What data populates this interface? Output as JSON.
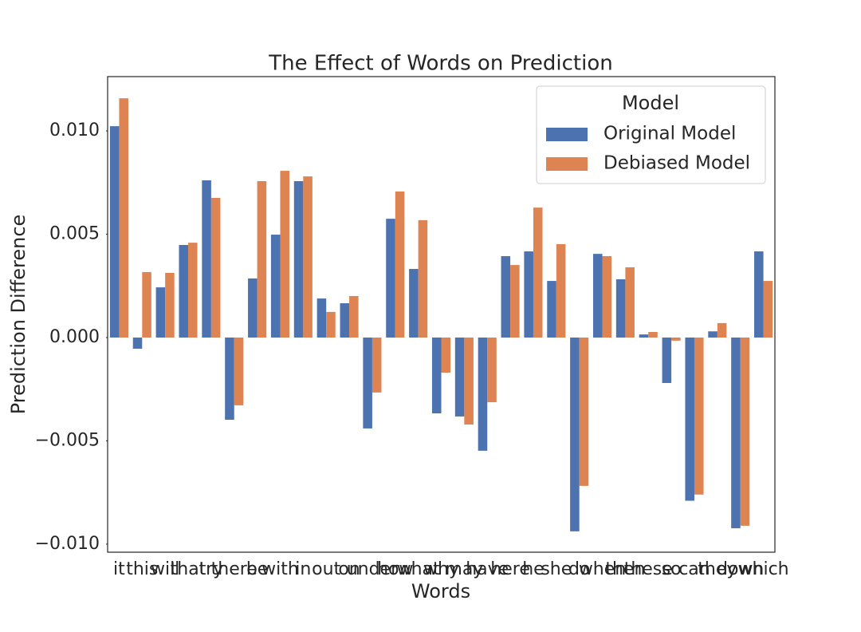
{
  "chart_data": {
    "type": "bar",
    "title": "The Effect of Words on Prediction",
    "xlabel": "Words",
    "ylabel": "Prediction Difference",
    "categories": [
      "it",
      "this",
      "will",
      "that",
      "try",
      "there",
      "be",
      "with",
      "in",
      "out",
      "on",
      "under",
      "how",
      "what",
      "why",
      "may",
      "have",
      "here",
      "he",
      "she",
      "do",
      "when",
      "then",
      "these",
      "so",
      "can",
      "they",
      "down",
      "which"
    ],
    "series": [
      {
        "name": "Original Model",
        "color": "#4c72b0",
        "values": [
          0.01023,
          -0.00054,
          0.00243,
          0.00448,
          0.00761,
          -0.00398,
          0.00286,
          0.00498,
          0.00757,
          0.00189,
          0.00166,
          -0.0044,
          0.00575,
          0.00332,
          -0.00367,
          -0.00382,
          -0.00548,
          0.00394,
          0.00417,
          0.00274,
          -0.00938,
          0.00405,
          0.00282,
          0.00015,
          -0.0022,
          -0.0079,
          0.0003,
          -0.00923,
          0.00417
        ]
      },
      {
        "name": "Debiased Model",
        "color": "#dd8452",
        "values": [
          0.01158,
          0.00317,
          0.00313,
          0.00459,
          0.00676,
          -0.00328,
          0.00757,
          0.00807,
          0.0078,
          0.00124,
          0.00201,
          -0.00266,
          0.00707,
          0.00568,
          -0.0017,
          -0.00421,
          -0.00313,
          0.00351,
          0.00629,
          0.00452,
          -0.00718,
          0.00394,
          0.0034,
          0.00027,
          -0.00015,
          -0.0076,
          0.0007,
          -0.00911,
          0.00274
        ]
      }
    ],
    "legend_title": "Model",
    "legend": "upper right",
    "ylim": [
      -0.01039,
      0.01263
    ],
    "yticks": [
      {
        "value": -0.01,
        "label": "−0.010"
      },
      {
        "value": -0.005,
        "label": "−0.005"
      },
      {
        "value": 0,
        "label": "0.000"
      },
      {
        "value": 0.005,
        "label": "0.005"
      },
      {
        "value": 0.01,
        "label": "0.010"
      }
    ]
  }
}
